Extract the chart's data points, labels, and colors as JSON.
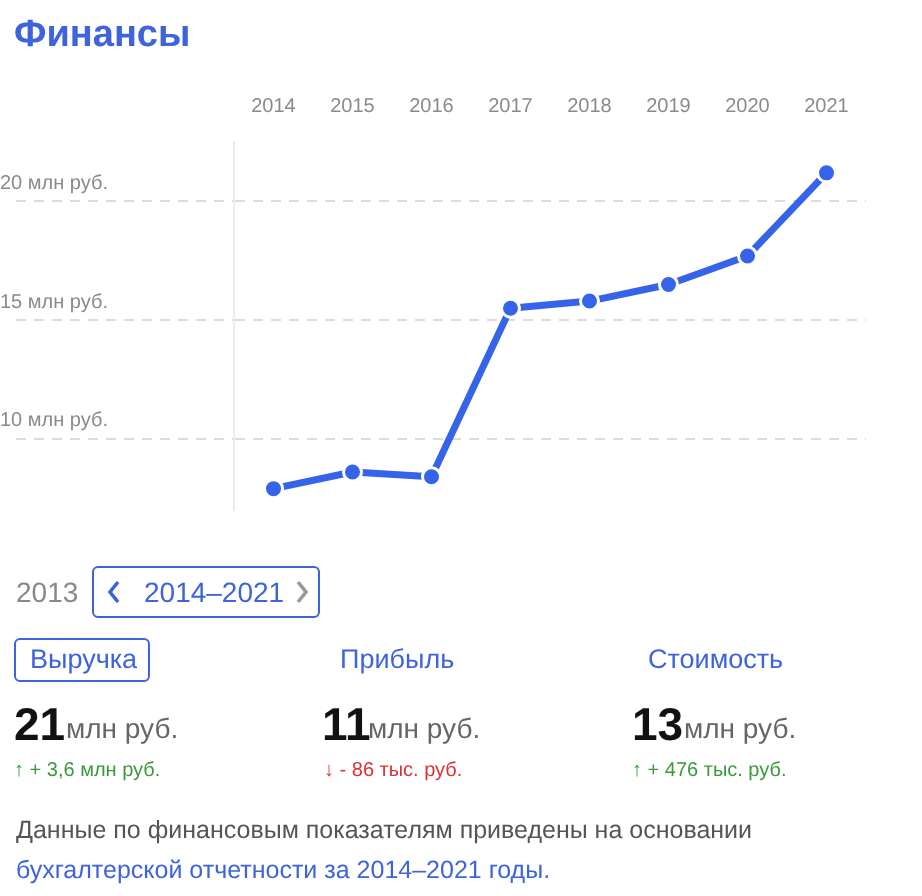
{
  "chart_data": {
    "type": "line",
    "title": "Финансы",
    "categories": [
      "2014",
      "2015",
      "2016",
      "2017",
      "2018",
      "2019",
      "2020",
      "2021"
    ],
    "series": [
      {
        "color": "#3563e9",
        "values": [
          7.9,
          8.6,
          8.4,
          15.5,
          15.8,
          16.5,
          17.7,
          21.2
        ]
      }
    ],
    "yticks": [
      {
        "value": 10,
        "label": "10 млн руб."
      },
      {
        "value": 15,
        "label": "15 млн руб."
      },
      {
        "value": 20,
        "label": "20 млн руб."
      }
    ],
    "ylim": [
      7,
      22.5
    ],
    "grid": "y",
    "legend": false,
    "marker": "circle",
    "line_style": "solid",
    "annotations": [
      "2013",
      "2014–2021",
      "Выручка",
      "Прибыль",
      "Стоимость",
      "21",
      "млн руб.",
      "11",
      "млн руб.",
      "13",
      "млн руб.",
      "↑ + 3,6 млн руб.",
      "↓ - 86 тыс. руб.",
      "↑ + 476 тыс. руб.",
      "Данные по финансовым показателям приведены на основании ",
      "бухгалтерской отчетности за 2014–2021 годы."
    ]
  }
}
